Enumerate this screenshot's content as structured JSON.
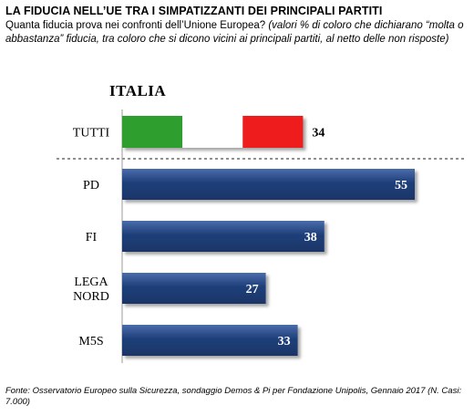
{
  "title": "LA FIDUCIA NELL’UE TRA I SIMPATIZZANTI DEI PRINCIPALI PARTITI",
  "subtitle": {
    "question": "Quanta fiducia prova nei confronti dell’Unione Europea?",
    "note": "(valori % di coloro che dichiarano “molta o abbastanza” fiducia, tra coloro che si dicono vicini ai principali partiti, al netto delle non risposte)"
  },
  "country": "ITALIA",
  "footer": "Fonte: Osservatorio Europeo sulla Sicurezza, sondaggio Demos & Pi per Fondazione Unipolis, Gennaio 2017 (N. Casi: 7.000)",
  "colors": {
    "bar": "#1f3f7a",
    "bar_light": "#3a5f9f",
    "flag_green": "#2e9e2e",
    "flag_white": "#ffffff",
    "flag_red": "#ee1c1c"
  },
  "chart_data": {
    "type": "bar",
    "orientation": "horizontal",
    "categories": [
      "TUTTI",
      "PD",
      "FI",
      "LEGA NORD",
      "M5S"
    ],
    "values": [
      34,
      55,
      38,
      27,
      33
    ],
    "highlight": {
      "category": "TUTTI",
      "style": "italian-flag"
    },
    "title": "ITALIA",
    "xlabel": "",
    "ylabel": "",
    "xlim": [
      0,
      55
    ],
    "grid": false,
    "legend": "none"
  }
}
